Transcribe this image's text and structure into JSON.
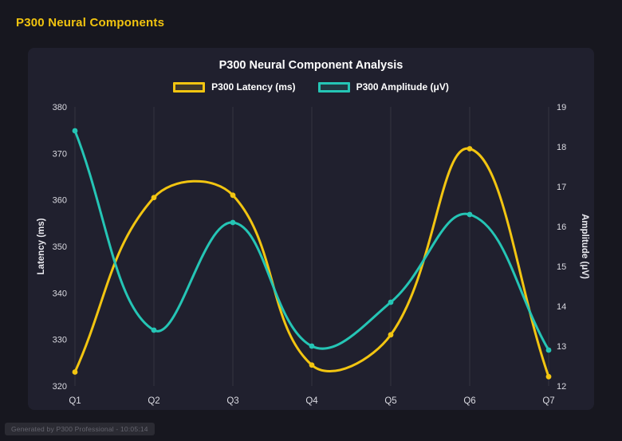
{
  "page": {
    "title": "P300 Neural Components",
    "footer": "Generated by P300 Professional - 10:05:14"
  },
  "chart": {
    "title": "P300 Neural Component Analysis"
  },
  "colors": {
    "latency": "#f2c511",
    "amplitude": "#25c5b5",
    "grid": "rgba(255,255,255,0.09)",
    "tick_text": "#d9d9e0",
    "axis_title_text": "#e8e8ee"
  },
  "chart_data": {
    "type": "line",
    "categories": [
      "Q1",
      "Q2",
      "Q3",
      "Q4",
      "Q5",
      "Q6",
      "Q7"
    ],
    "series": [
      {
        "name": "P300 Latency (ms)",
        "axis": "left",
        "color": "#f2c511",
        "values": [
          323,
          360.5,
          361,
          324.5,
          331,
          371,
          322
        ]
      },
      {
        "name": "P300 Amplitude (μV)",
        "axis": "right",
        "color": "#25c5b5",
        "values": [
          18.4,
          13.4,
          16.1,
          13.0,
          14.1,
          16.3,
          12.9
        ]
      }
    ],
    "left_axis": {
      "label": "Latency (ms)",
      "min": 320,
      "max": 380,
      "step": 10
    },
    "right_axis": {
      "label": "Amplitude (μV)",
      "min": 12,
      "max": 19,
      "step": 1
    },
    "grid": "vertical-only",
    "legend_position": "top",
    "smooth": true,
    "tension": 0.4
  }
}
